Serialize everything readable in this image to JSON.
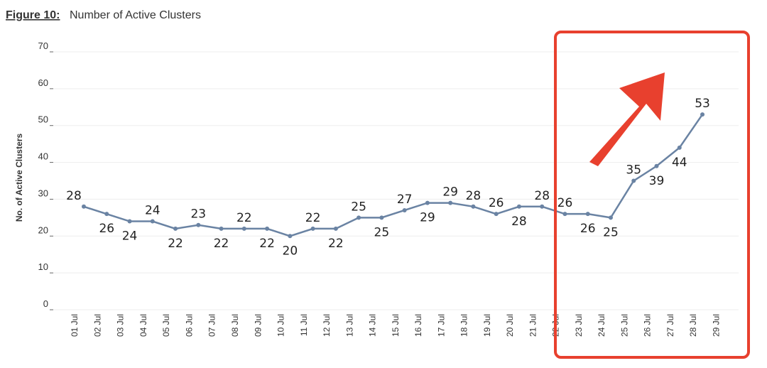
{
  "chart_data": {
    "type": "line",
    "title_prefix": "Figure 10:",
    "title": "Number of Active Clusters",
    "y_label": "No. of Active Clusters",
    "categories": [
      "01 Jul",
      "02 Jul",
      "03 Jul",
      "04 Jul",
      "05 Jul",
      "06 Jul",
      "07 Jul",
      "08 Jul",
      "09 Jul",
      "10 Jul",
      "11 Jul",
      "12 Jul",
      "13 Jul",
      "14 Jul",
      "15 Jul",
      "16 Jul",
      "17 Jul",
      "18 Jul",
      "19 Jul",
      "20 Jul",
      "21 Jul",
      "22 Jul",
      "23 Jul",
      "24 Jul",
      "25 Jul",
      "26 Jul",
      "27 Jul",
      "28 Jul",
      "29 Jul"
    ],
    "series": [
      {
        "name": "Active Clusters",
        "color": "#6a83a3",
        "values": [
          28,
          26,
          24,
          24,
          22,
          23,
          22,
          22,
          22,
          20,
          22,
          22,
          25,
          25,
          27,
          29,
          29,
          28,
          26,
          28,
          28,
          26,
          26,
          25,
          35,
          39,
          44,
          53,
          null
        ]
      }
    ],
    "ylim": [
      0,
      70
    ],
    "yticks": [
      0,
      10,
      20,
      30,
      40,
      50,
      60,
      70
    ],
    "grid": true
  }
}
